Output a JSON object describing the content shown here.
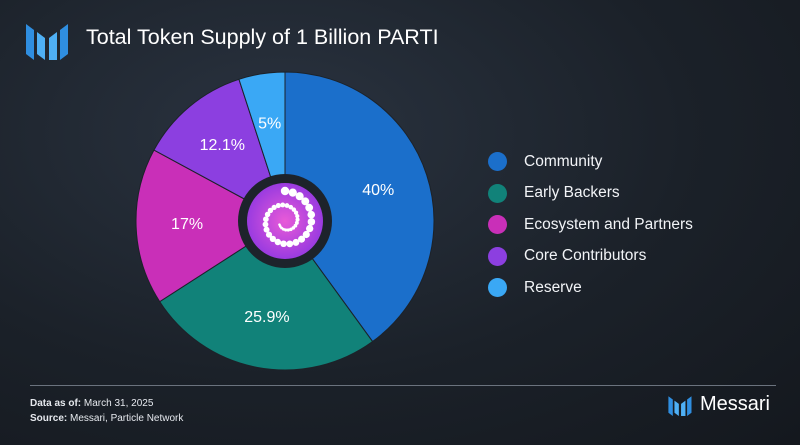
{
  "header": {
    "logo_icon": "messari-logo-icon",
    "title": "Total Token Supply of 1 Billion PARTI"
  },
  "chart_data": {
    "type": "pie",
    "title": "Total Token Supply of 1 Billion PARTI",
    "slices": [
      {
        "label": "Community",
        "value": 40,
        "value_label": "40%",
        "color": "#1b6fcb"
      },
      {
        "label": "Early Backers",
        "value": 25.9,
        "value_label": "25.9%",
        "color": "#118279"
      },
      {
        "label": "Ecosystem and Partners",
        "value": 17,
        "value_label": "17%",
        "color": "#c92fb8"
      },
      {
        "label": "Core Contributors",
        "value": 12.1,
        "value_label": "12.1%",
        "color": "#8c3fe0"
      },
      {
        "label": "Reserve",
        "value": 5,
        "value_label": "5%",
        "color": "#3aa8f5"
      }
    ],
    "legend_position": "right",
    "center_icon": "particle-network-logo-icon"
  },
  "footer": {
    "data_as_of_label": "Data as of:",
    "data_as_of_value": "March 31, 2025",
    "source_label": "Source:",
    "source_value": "Messari, Particle Network",
    "brand_icon": "messari-logo-icon",
    "brand_name": "Messari"
  }
}
